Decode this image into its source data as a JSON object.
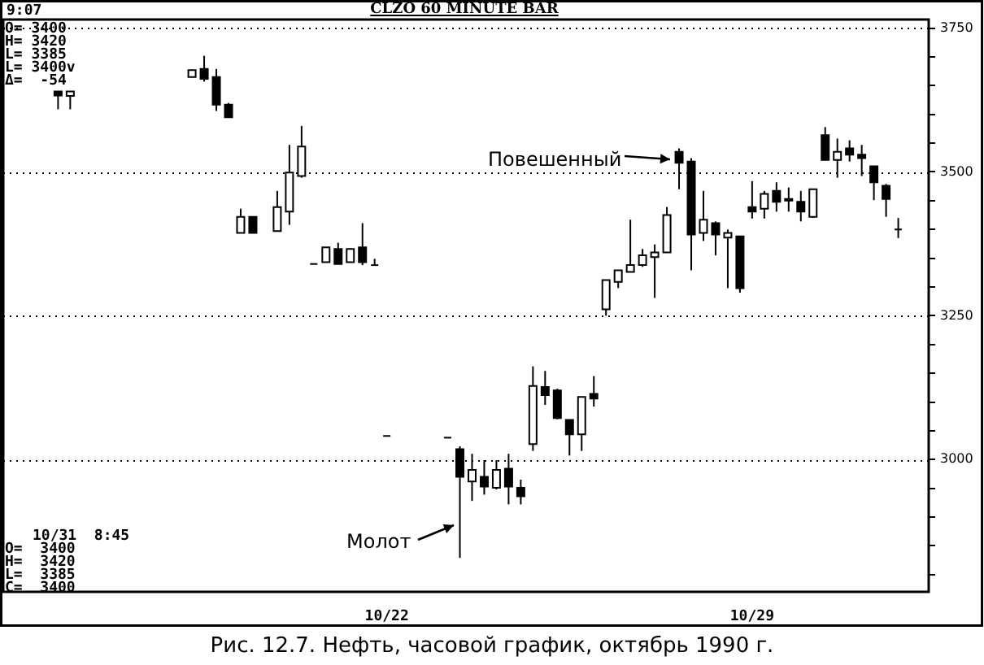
{
  "chart_data": {
    "type": "candlestick",
    "title": "CLZO 60 MINUTE BAR",
    "categories": [
      null,
      null,
      null,
      null,
      null,
      null,
      null,
      null,
      null,
      null,
      null,
      null,
      null,
      null,
      null,
      null,
      null,
      null,
      null,
      null,
      null,
      null,
      null,
      null,
      null,
      null,
      null,
      null,
      null,
      null,
      null,
      "10/22",
      null,
      null,
      null,
      null,
      null,
      null,
      null,
      null,
      null,
      null,
      null,
      null,
      null,
      null,
      null,
      null,
      null,
      null,
      null,
      null,
      null,
      null,
      null,
      null,
      null,
      null,
      null,
      null,
      null,
      "10/29",
      null,
      null,
      null,
      null,
      null,
      null,
      null,
      null,
      null,
      null,
      null,
      null,
      null,
      null
    ],
    "ohlc": [
      null,
      null,
      null,
      null,
      [
        3640,
        3640,
        3609,
        3633
      ],
      [
        3632,
        3640,
        3609,
        3640
      ],
      null,
      null,
      null,
      null,
      null,
      null,
      null,
      null,
      null,
      [
        3665,
        3677,
        3665,
        3677
      ],
      [
        3679,
        3702,
        3657,
        3662
      ],
      [
        3665,
        3679,
        3606,
        3617
      ],
      [
        3617,
        3620,
        3595,
        3595
      ],
      [
        3394,
        3436,
        3394,
        3422
      ],
      [
        3422,
        3422,
        3394,
        3394
      ],
      null,
      [
        3397,
        3467,
        3397,
        3439
      ],
      [
        3431,
        3547,
        3408,
        3499
      ],
      [
        3493,
        3580,
        3490,
        3544
      ],
      [
        3340,
        3340,
        3340,
        3340
      ],
      [
        3343,
        3369,
        3343,
        3369
      ],
      [
        3366,
        3377,
        3340,
        3340
      ],
      [
        3343,
        3366,
        3343,
        3366
      ],
      [
        3369,
        3411,
        3338,
        3343
      ],
      [
        3338,
        3349,
        3338,
        3338
      ],
      [
        3041,
        3041,
        3041,
        3041
      ],
      null,
      null,
      null,
      null,
      [
        3038,
        3038,
        3038,
        3038
      ],
      [
        3018,
        3023,
        2829,
        2970
      ],
      [
        2962,
        3010,
        2928,
        2982
      ],
      [
        2970,
        2999,
        2939,
        2953
      ],
      [
        2951,
        2999,
        2948,
        2982
      ],
      [
        2984,
        3010,
        2922,
        2953
      ],
      [
        2951,
        2965,
        2922,
        2936
      ],
      [
        3027,
        3162,
        3015,
        3128
      ],
      [
        3126,
        3154,
        3095,
        3112
      ],
      [
        3120,
        3123,
        3070,
        3072
      ],
      [
        3069,
        3069,
        3007,
        3044
      ],
      [
        3044,
        3109,
        3015,
        3109
      ],
      [
        3114,
        3145,
        3092,
        3106
      ],
      [
        3261,
        3312,
        3250,
        3312
      ],
      [
        3309,
        3329,
        3298,
        3329
      ],
      [
        3326,
        3417,
        3326,
        3338
      ],
      [
        3338,
        3366,
        3335,
        3355
      ],
      [
        3352,
        3374,
        3281,
        3360
      ],
      [
        3360,
        3439,
        3360,
        3425
      ],
      [
        3535,
        3541,
        3470,
        3516
      ],
      [
        3518,
        3524,
        3329,
        3391
      ],
      [
        3394,
        3467,
        3380,
        3417
      ],
      [
        3411,
        3414,
        3355,
        3391
      ],
      [
        3386,
        3400,
        3298,
        3394
      ],
      [
        3388,
        3388,
        3290,
        3298
      ],
      [
        3439,
        3484,
        3419,
        3431
      ],
      [
        3436,
        3467,
        3419,
        3462
      ],
      [
        3467,
        3482,
        3431,
        3448
      ],
      [
        3453,
        3473,
        3431,
        3450
      ],
      [
        3448,
        3467,
        3414,
        3431
      ],
      [
        3422,
        3470,
        3420,
        3470
      ],
      [
        3564,
        3578,
        3521,
        3521
      ],
      [
        3521,
        3558,
        3490,
        3535
      ],
      [
        3541,
        3555,
        3518,
        3530
      ],
      [
        3530,
        3547,
        3493,
        3524
      ],
      [
        3510,
        3510,
        3451,
        3482
      ],
      [
        3476,
        3479,
        3422,
        3453
      ],
      [
        3400,
        3420,
        3385,
        3400
      ],
      null,
      null
    ],
    "ylim": [
      2770,
      3765
    ],
    "yticks": [
      {
        "value": 2800,
        "label": null
      },
      {
        "value": 2850,
        "label": null
      },
      {
        "value": 2900,
        "label": null
      },
      {
        "value": 2950,
        "label": null
      },
      3000,
      {
        "value": 3050,
        "label": null
      },
      {
        "value": 3100,
        "label": null
      },
      {
        "value": 3150,
        "label": null
      },
      {
        "value": 3200,
        "label": null
      },
      3250,
      {
        "value": 3300,
        "label": null
      },
      {
        "value": 3350,
        "label": null
      },
      {
        "value": 3400,
        "label": null
      },
      {
        "value": 3450,
        "label": null
      },
      3500,
      {
        "value": 3550,
        "label": null
      },
      {
        "value": 3600,
        "label": null
      },
      {
        "value": 3650,
        "label": null
      },
      {
        "value": 3700,
        "label": null
      },
      3750
    ],
    "grid": "y",
    "annotations": [
      "9:07",
      "O= 3400",
      "H= 3420",
      "L= 3385",
      "L= 3400v",
      "Δ=  -54",
      "10/31  8:45",
      "O=  3400",
      "H=  3420",
      "L=  3385",
      "C=  3400",
      "Повешенный",
      "Молот",
      "Рис. 12.7. Нефть, часовой график, октябрь 1990 г."
    ]
  }
}
